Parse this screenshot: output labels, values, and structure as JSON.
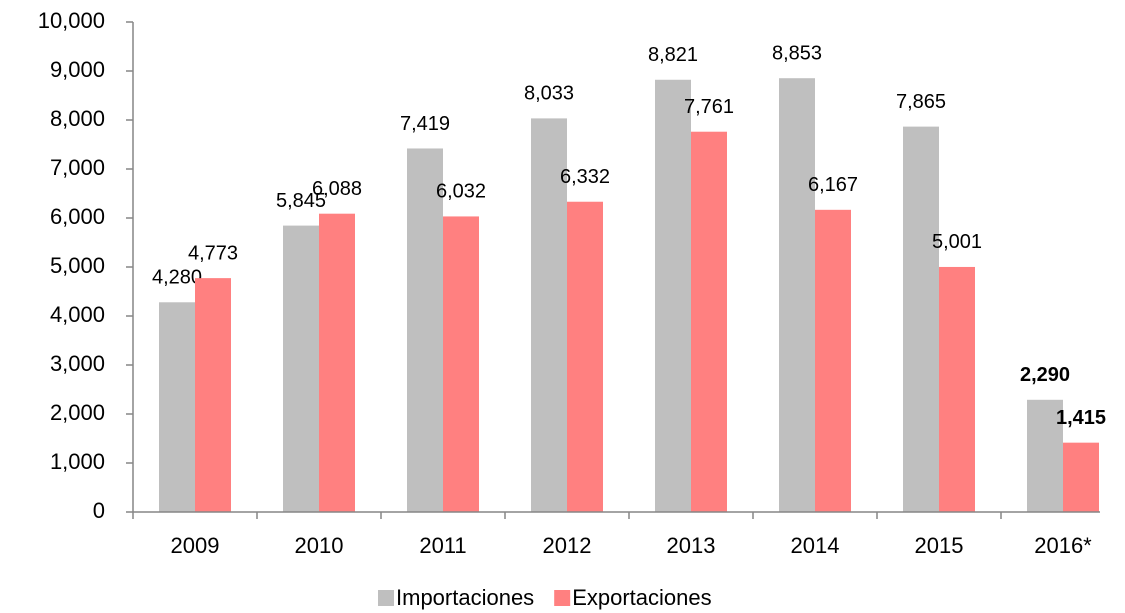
{
  "chart_data": {
    "type": "bar",
    "categories": [
      "2009",
      "2010",
      "2011",
      "2012",
      "2013",
      "2014",
      "2015",
      "2016*"
    ],
    "series": [
      {
        "name": "Importaciones",
        "color": "#bfbfbf",
        "values": [
          4280,
          5845,
          7419,
          8033,
          8821,
          8853,
          7865,
          2290
        ],
        "value_labels": [
          "4,280",
          "5,845",
          "7,419",
          "8,033",
          "8,821",
          "8,853",
          "7,865",
          "2,290"
        ]
      },
      {
        "name": "Exportaciones",
        "color": "#ff8080",
        "values": [
          4773,
          6088,
          6032,
          6332,
          7761,
          6167,
          5001,
          1415
        ],
        "value_labels": [
          "4,773",
          "6,088",
          "6,032",
          "6,332",
          "7,761",
          "6,167",
          "5,001",
          "1,415"
        ]
      }
    ],
    "ylim": [
      0,
      10000
    ],
    "yticks": [
      0,
      {
        "value": 1000,
        "label": "1,000"
      },
      {
        "value": 2000,
        "label": "2,000"
      },
      {
        "value": 3000,
        "label": "3,000"
      },
      {
        "value": 4000,
        "label": "4,000"
      },
      {
        "value": 5000,
        "label": "5,000"
      },
      {
        "value": 6000,
        "label": "6,000"
      },
      {
        "value": 7000,
        "label": "7,000"
      },
      {
        "value": 8000,
        "label": "8,000"
      },
      {
        "value": 9000,
        "label": "9,000"
      },
      {
        "value": 10000,
        "label": "10,000"
      }
    ],
    "legend": "bottom"
  }
}
